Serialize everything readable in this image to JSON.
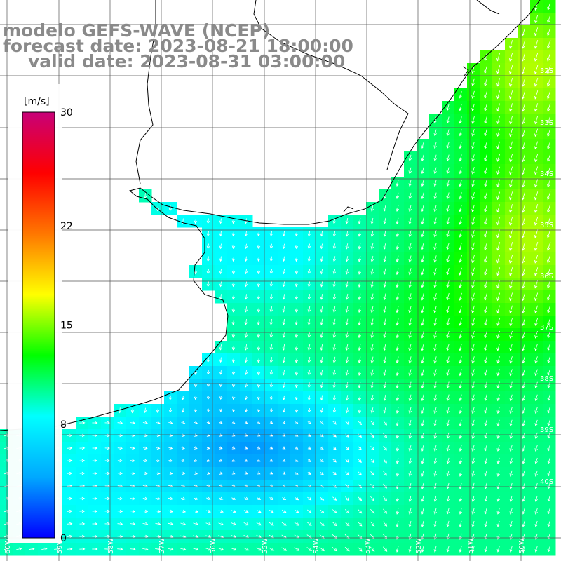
{
  "title": {
    "line1": "modelo GEFS-WAVE (NCEP)",
    "line2": "forecast date: 2023-08-21 18:00:00",
    "line3": "valid date: 2023-08-31 03:00:00"
  },
  "colorbar": {
    "unit": "[m/s]",
    "ticks": [
      "30",
      "22",
      "15",
      "8",
      "0"
    ],
    "tick_values": [
      30,
      22,
      15,
      8,
      0
    ],
    "range": [
      0,
      30
    ],
    "colors": [
      "#0000ff",
      "#00a8ff",
      "#00ffff",
      "#00ff00",
      "#ffff00",
      "#ff7700",
      "#ff0000",
      "#c80078"
    ]
  },
  "lat_labels": [
    "32S",
    "33S",
    "34S",
    "35S",
    "36S",
    "37S",
    "38S",
    "39S",
    "40S"
  ],
  "lon_labels": [
    "60W",
    "59W",
    "58W",
    "57W",
    "56W",
    "55W",
    "54W",
    "53W",
    "52W",
    "51W",
    "50W"
  ],
  "colors": {
    "land": "#ffffff",
    "grid": "#555555",
    "coast": "#000000",
    "arrow": "#ffffff"
  }
}
